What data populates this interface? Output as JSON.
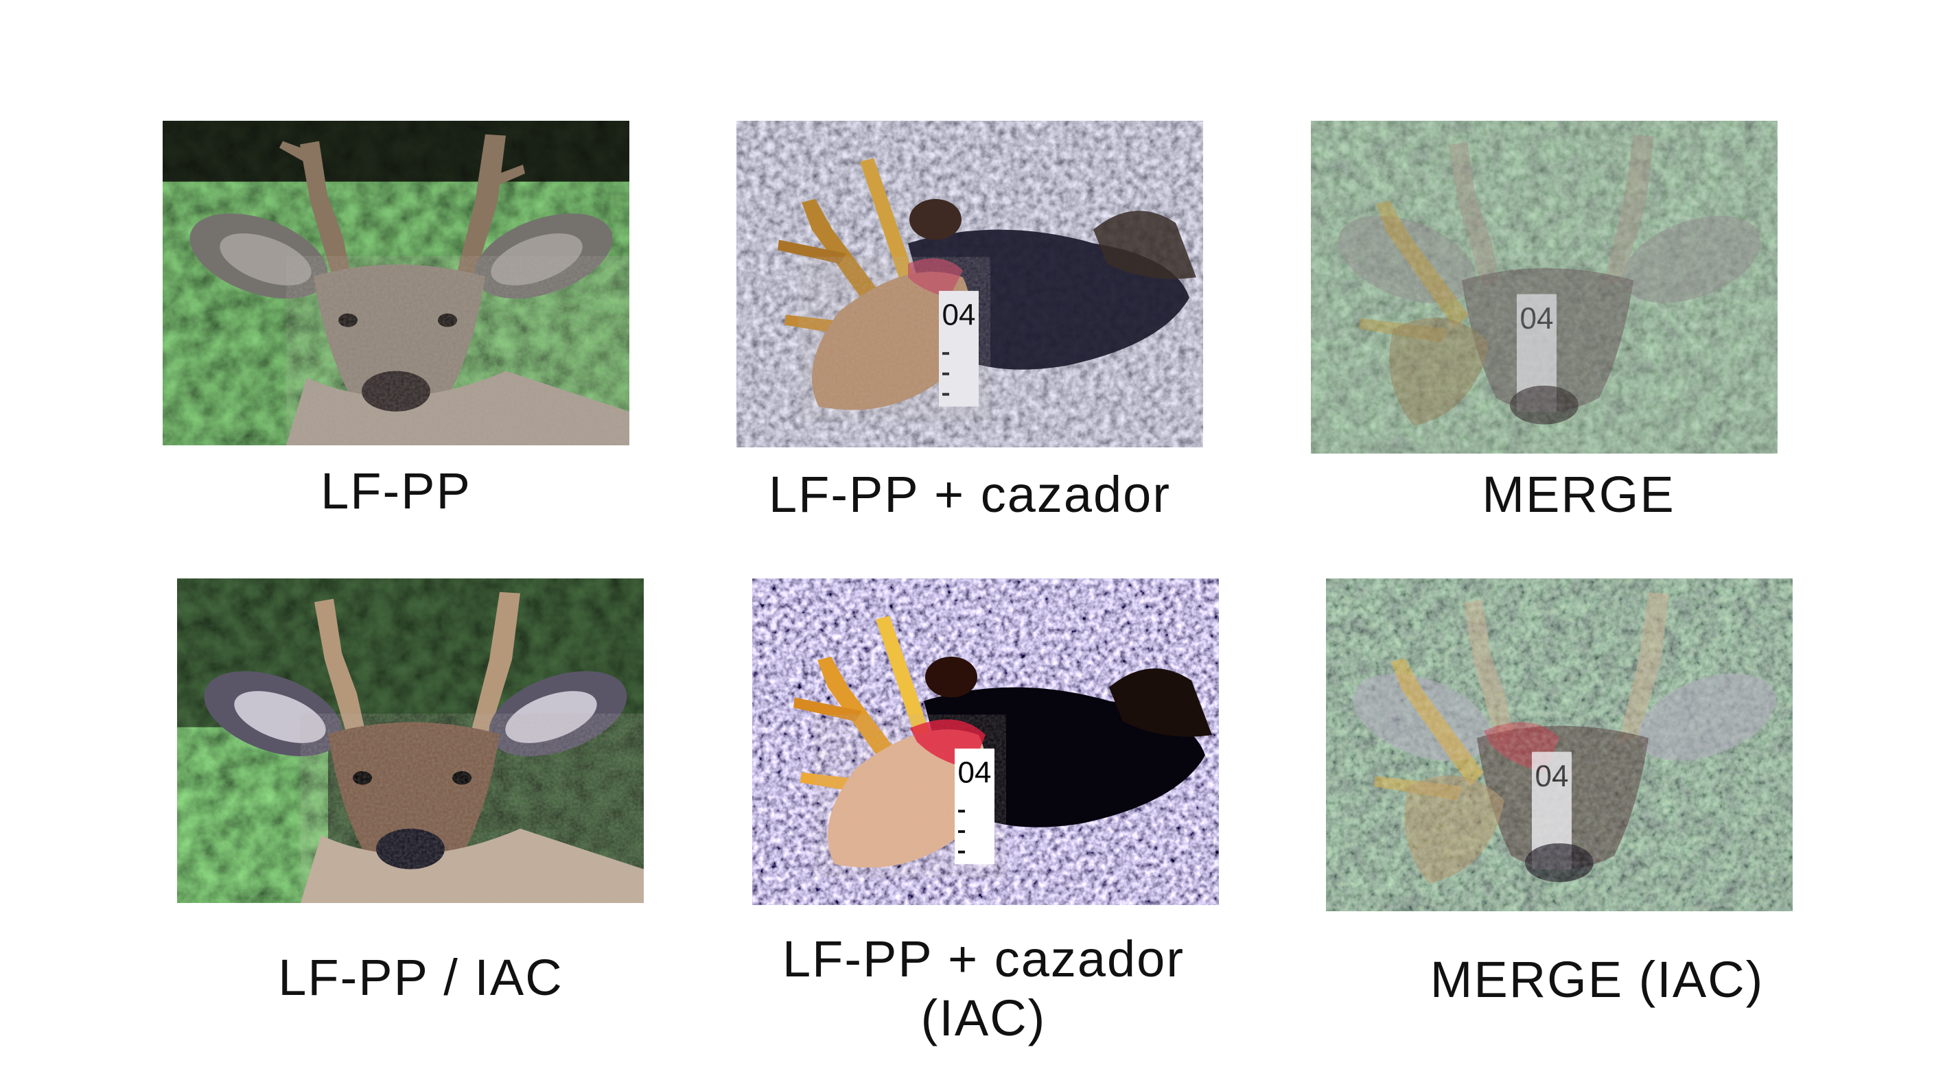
{
  "figure": {
    "panels": [
      {
        "id": "lf-pp",
        "caption": "LF-PP",
        "subject": "deer-portrait",
        "style": "normal"
      },
      {
        "id": "lf-pp-cazador",
        "caption": "LF-PP + cazador",
        "subject": "deer-with-hunter-tag",
        "tag_text": "04",
        "style": "normal"
      },
      {
        "id": "merge",
        "caption": "MERGE",
        "subject": "merged-overlay",
        "tag_text": "04",
        "style": "normal"
      },
      {
        "id": "lf-pp-iac",
        "caption": "LF-PP / IAC",
        "subject": "deer-portrait",
        "style": "iac"
      },
      {
        "id": "lf-pp-cazador-iac",
        "caption_line1": "LF-PP + cazador",
        "caption_line2": "(IAC)",
        "subject": "deer-with-hunter-tag",
        "tag_text": "04",
        "style": "iac"
      },
      {
        "id": "merge-iac",
        "caption": "MERGE (IAC)",
        "subject": "merged-overlay",
        "tag_text": "04",
        "style": "iac"
      }
    ]
  }
}
